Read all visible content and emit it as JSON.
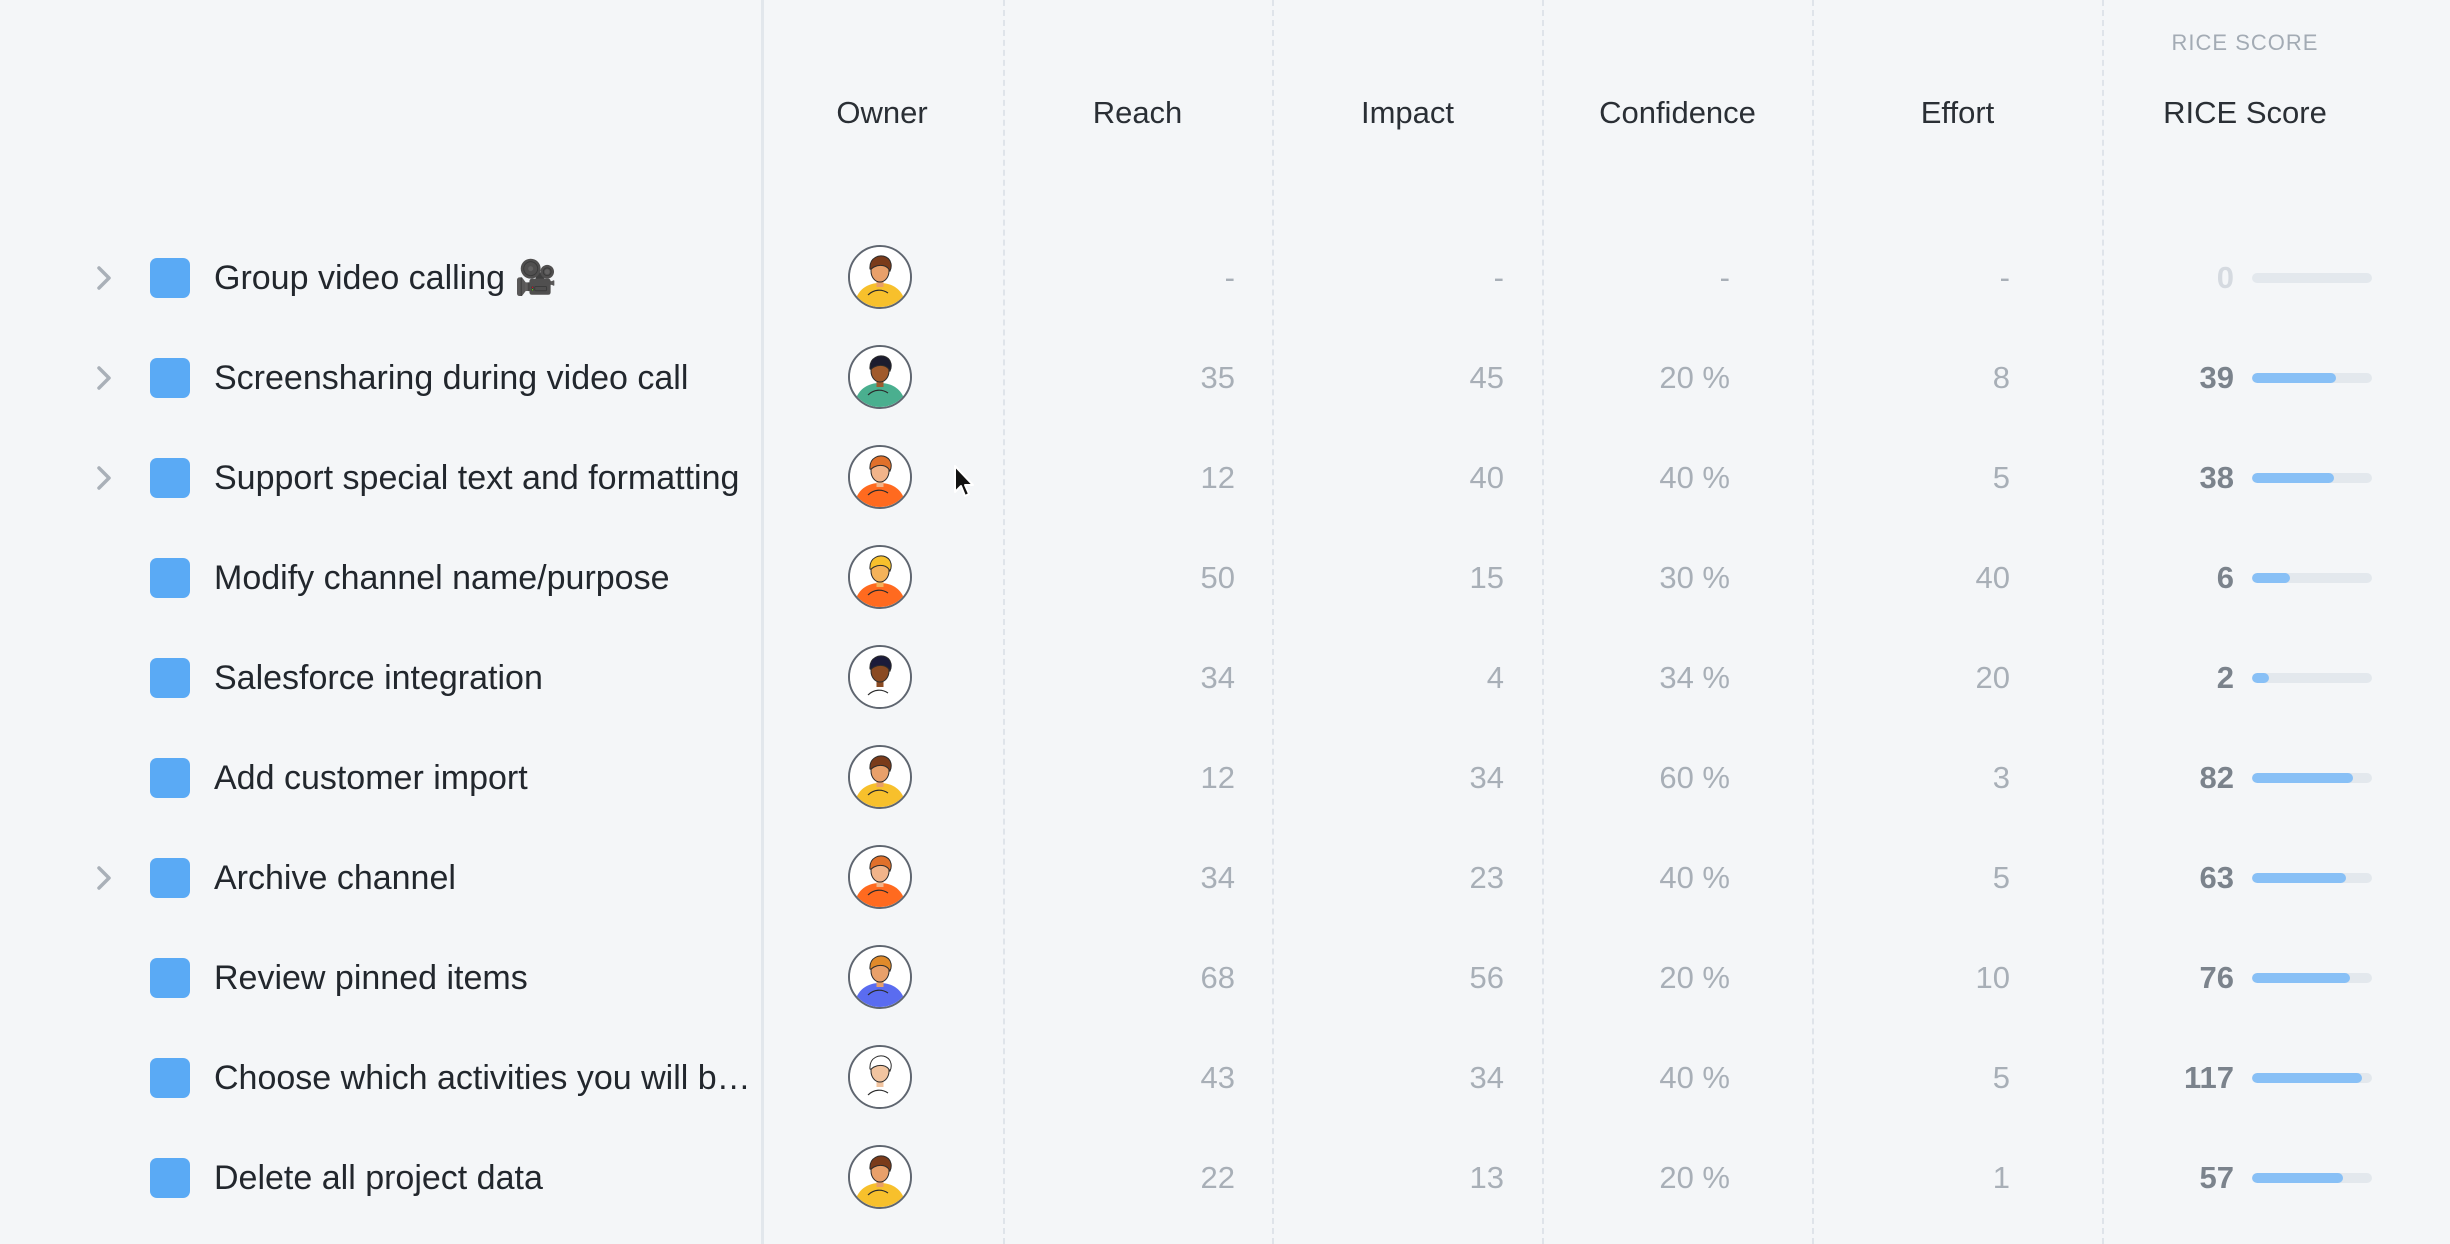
{
  "header": {
    "group_label": "RICE SCORE",
    "columns": {
      "owner": "Owner",
      "reach": "Reach",
      "impact": "Impact",
      "confidence": "Confidence",
      "effort": "Effort",
      "rice": "RICE Score"
    }
  },
  "colors": {
    "accent": "#5aaaf5",
    "bar_fill": "#88c0f6",
    "bar_track": "#e3e8ed",
    "background": "#f4f6f8"
  },
  "icons": {
    "expand": "chevron-right-icon",
    "checkbox": "checkbox-icon",
    "owner": "avatar-illustration"
  },
  "features": [
    {
      "title": "Group video calling 🎥",
      "has_children": true,
      "reach": "-",
      "impact": "-",
      "confidence": "-",
      "effort": "-",
      "rice": "0",
      "rice_fraction": 0,
      "avatar": {
        "bg": "#f7c02c",
        "skin": "#e8a06a",
        "hair": "#7a3b1a"
      }
    },
    {
      "title": "Screensharing during video call",
      "has_children": true,
      "reach": "35",
      "impact": "45",
      "confidence": "20 %",
      "effort": "8",
      "rice": "39",
      "rice_fraction": 0.7,
      "avatar": {
        "bg": "#4aaf8f",
        "skin": "#a05a2c",
        "hair": "#1c1c2e"
      }
    },
    {
      "title": "Support special text and formatting",
      "has_children": true,
      "reach": "12",
      "impact": "40",
      "confidence": "40 %",
      "effort": "5",
      "rice": "38",
      "rice_fraction": 0.68,
      "avatar": {
        "bg": "#ff6a1f",
        "skin": "#f1b48a",
        "hair": "#e0702a"
      }
    },
    {
      "title": "Modify channel name/purpose",
      "has_children": false,
      "reach": "50",
      "impact": "15",
      "confidence": "30 %",
      "effort": "40",
      "rice": "6",
      "rice_fraction": 0.32,
      "avatar": {
        "bg": "#ff6a1f",
        "skin": "#f4b25a",
        "hair": "#f7c02c"
      }
    },
    {
      "title": "Salesforce integration",
      "has_children": false,
      "reach": "34",
      "impact": "4",
      "confidence": "34 %",
      "effort": "20",
      "rice": "2",
      "rice_fraction": 0.14,
      "avatar": {
        "bg": "#ffffff",
        "skin": "#8a4a22",
        "hair": "#1b1b3a"
      }
    },
    {
      "title": "Add customer import",
      "has_children": false,
      "reach": "12",
      "impact": "34",
      "confidence": "60 %",
      "effort": "3",
      "rice": "82",
      "rice_fraction": 0.84,
      "avatar": {
        "bg": "#f7c02c",
        "skin": "#e8a06a",
        "hair": "#7a3b1a"
      }
    },
    {
      "title": "Archive channel",
      "has_children": true,
      "reach": "34",
      "impact": "23",
      "confidence": "40 %",
      "effort": "5",
      "rice": "63",
      "rice_fraction": 0.78,
      "avatar": {
        "bg": "#ff6a1f",
        "skin": "#f1b48a",
        "hair": "#e0702a"
      }
    },
    {
      "title": "Review pinned items",
      "has_children": false,
      "reach": "68",
      "impact": "56",
      "confidence": "20 %",
      "effort": "10",
      "rice": "76",
      "rice_fraction": 0.82,
      "avatar": {
        "bg": "#5a6cf0",
        "skin": "#e8a06a",
        "hair": "#e08a2a"
      }
    },
    {
      "title": "Choose which activities you will be notified about",
      "has_children": false,
      "reach": "43",
      "impact": "34",
      "confidence": "40 %",
      "effort": "5",
      "rice": "117",
      "rice_fraction": 0.92,
      "avatar": {
        "bg": "#ffffff",
        "skin": "#f1c4a0",
        "hair": "#ffffff"
      }
    },
    {
      "title": "Delete all project data",
      "has_children": false,
      "reach": "22",
      "impact": "13",
      "confidence": "20 %",
      "effort": "1",
      "rice": "57",
      "rice_fraction": 0.76,
      "avatar": {
        "bg": "#f7c02c",
        "skin": "#e8a06a",
        "hair": "#7a3b1a"
      }
    }
  ]
}
